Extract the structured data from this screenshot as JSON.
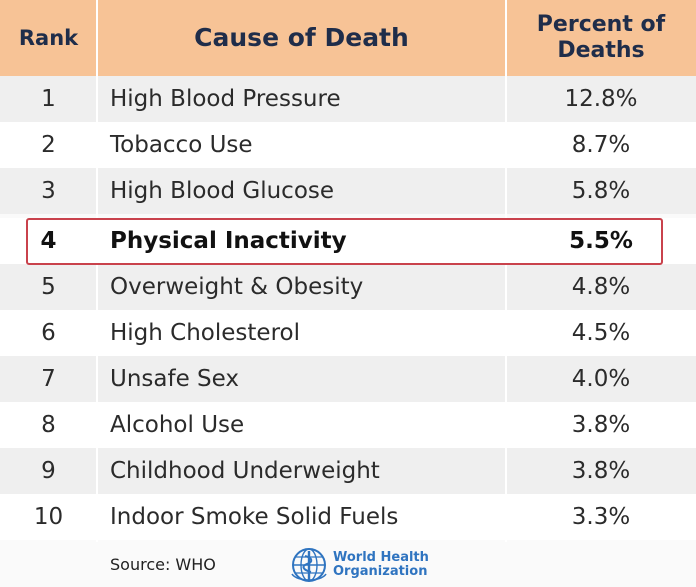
{
  "header": {
    "rank": "Rank",
    "cause": "Cause of Death",
    "percent_line1": "Percent of",
    "percent_line2": "Deaths"
  },
  "rows": [
    {
      "rank": "1",
      "cause": "High Blood Pressure",
      "percent": "12.8%"
    },
    {
      "rank": "2",
      "cause": "Tobacco Use",
      "percent": "8.7%"
    },
    {
      "rank": "3",
      "cause": "High Blood Glucose",
      "percent": "5.8%"
    },
    {
      "rank": "4",
      "cause": "Physical Inactivity",
      "percent": "5.5%"
    },
    {
      "rank": "5",
      "cause": "Overweight & Obesity",
      "percent": "4.8%"
    },
    {
      "rank": "6",
      "cause": "High Cholesterol",
      "percent": "4.5%"
    },
    {
      "rank": "7",
      "cause": "Unsafe Sex",
      "percent": "4.0%"
    },
    {
      "rank": "8",
      "cause": "Alcohol Use",
      "percent": "3.8%"
    },
    {
      "rank": "9",
      "cause": "Childhood Underweight",
      "percent": "3.8%"
    },
    {
      "rank": "10",
      "cause": "Indoor Smoke Solid Fuels",
      "percent": "3.3%"
    }
  ],
  "highlighted_rank": "4",
  "footer": {
    "source": "Source: WHO",
    "org_line1": "World Health",
    "org_line2": "Organization"
  },
  "colors": {
    "header_bg": "#f7c396",
    "header_text": "#1f2d4a",
    "highlight_border": "#c9424c",
    "who_blue": "#2f74c0"
  },
  "icons": {
    "who_logo": "who-emblem-icon"
  }
}
